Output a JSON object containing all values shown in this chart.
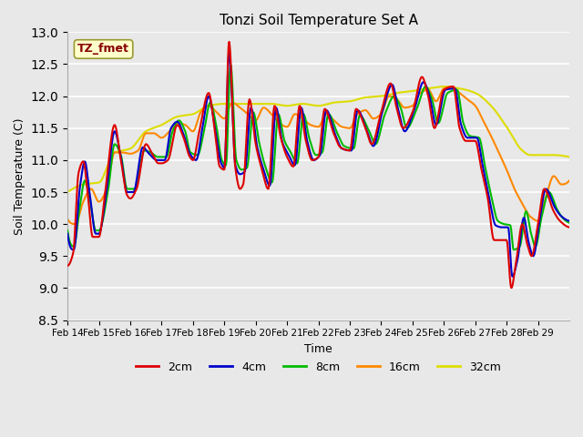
{
  "title": "Tonzi Soil Temperature Set A",
  "xlabel": "Time",
  "ylabel": "Soil Temperature (C)",
  "ylim": [
    8.5,
    13.0
  ],
  "annotation": "TZ_fmet",
  "legend_labels": [
    "2cm",
    "4cm",
    "8cm",
    "16cm",
    "32cm"
  ],
  "legend_colors": [
    "#dd0000",
    "#0000cc",
    "#00bb00",
    "#ff8800",
    "#dddd00"
  ],
  "line_width": 1.5,
  "bg_color": "#e8e8e8",
  "xtick_labels": [
    "Feb 14",
    "Feb 15",
    "Feb 16",
    "Feb 17",
    "Feb 18",
    "Feb 19",
    "Feb 20",
    "Feb 21",
    "Feb 22",
    "Feb 23",
    "Feb 24",
    "Feb 25",
    "Feb 26",
    "Feb 27",
    "Feb 28",
    "Feb 29"
  ],
  "ytick_vals": [
    8.5,
    9.0,
    9.5,
    10.0,
    10.5,
    11.0,
    11.5,
    12.0,
    12.5,
    13.0
  ]
}
